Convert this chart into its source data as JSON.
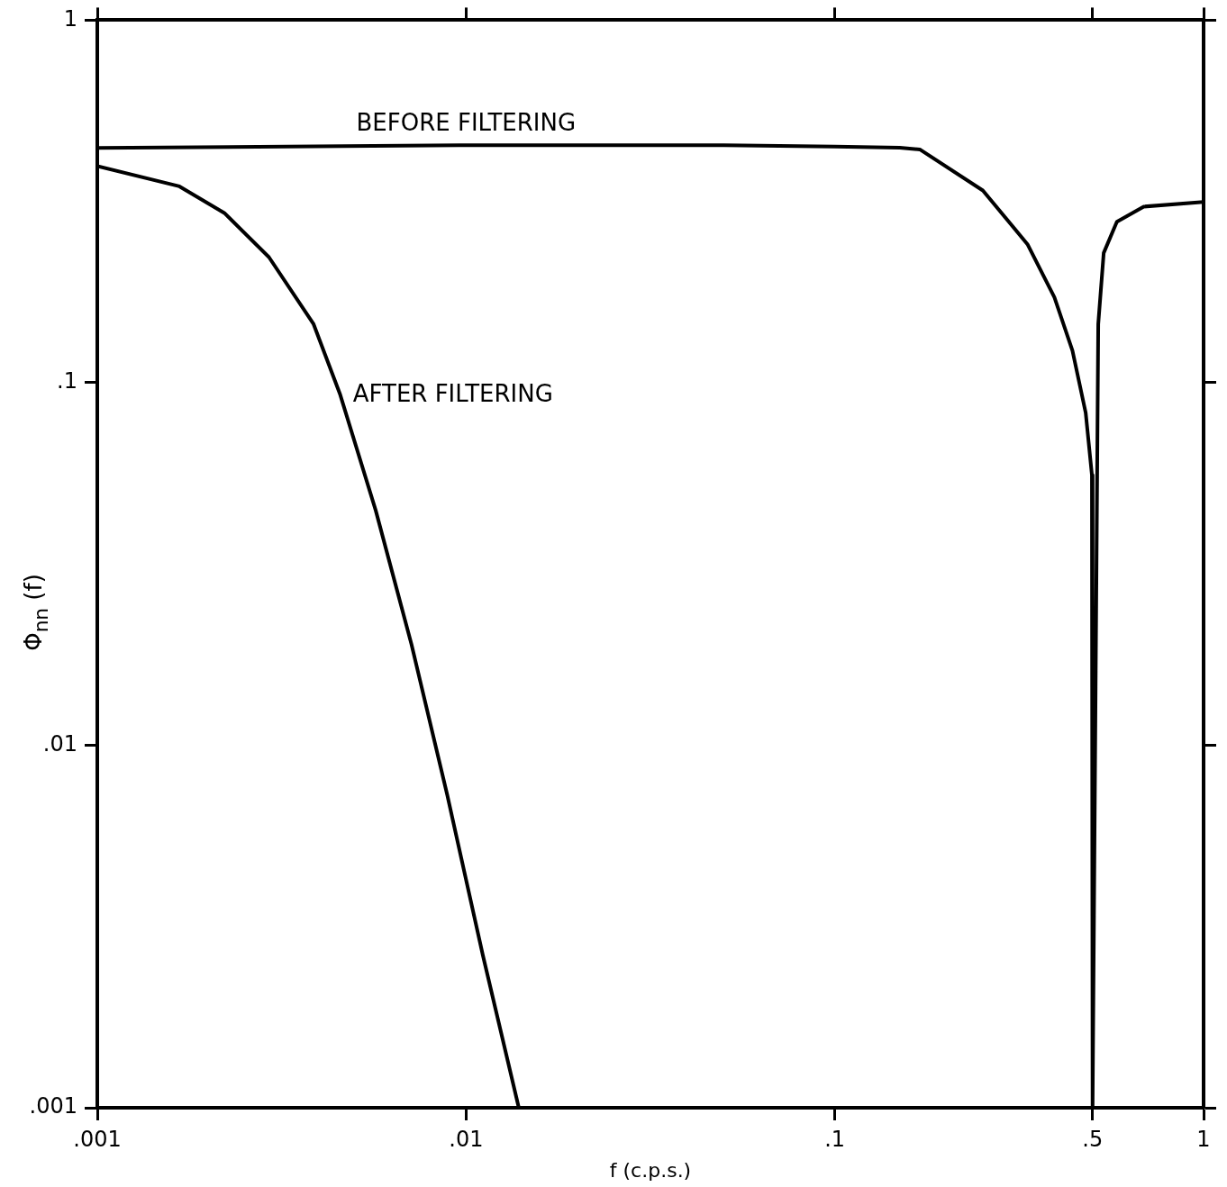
{
  "chart_data": {
    "type": "line",
    "xlabel": "f (c.p.s.)",
    "ylabel": "Φ$_{nn}$ (f)",
    "log": "xy",
    "grid": false,
    "legend": false,
    "marker": "none",
    "line_style": "solid",
    "xlim": [
      0.001,
      1
    ],
    "ylim": [
      0.001,
      1
    ],
    "xticks": [
      {
        "value": 0.001,
        "label": ".001"
      },
      {
        "value": 0.01,
        "label": ".01"
      },
      {
        "value": 0.1,
        "label": ".1"
      },
      {
        "value": 0.5,
        "label": ".5"
      },
      1
    ],
    "yticks": [
      {
        "value": 0.001,
        "label": ".001"
      },
      {
        "value": 0.01,
        "label": ".01"
      },
      {
        "value": 0.1,
        "label": ".1"
      },
      1
    ],
    "series": [
      {
        "name": "BEFORE FILTERING",
        "color": "#000000",
        "x": [
          0.001,
          0.01,
          0.05,
          0.1,
          0.15,
          0.17,
          0.252,
          0.333,
          0.394,
          0.441,
          0.479,
          0.498,
          0.5,
          0.5,
          0.518,
          0.536,
          0.582,
          0.688,
          1
        ],
        "values": [
          0.444,
          0.452,
          0.452,
          0.448,
          0.445,
          0.44,
          0.339,
          0.241,
          0.172,
          0.1225,
          0.0826,
          0.0556,
          0.001,
          0.001,
          0.145,
          0.228,
          0.278,
          0.306,
          0.315
        ]
      },
      {
        "name": "AFTER FILTERING",
        "color": "#000000",
        "x": [
          0.001,
          0.00167,
          0.00221,
          0.00292,
          0.00386,
          0.00456,
          0.00569,
          0.00711,
          0.00889,
          0.0111,
          0.0139
        ],
        "values": [
          0.396,
          0.348,
          0.294,
          0.222,
          0.145,
          0.0925,
          0.0444,
          0.019,
          0.0073,
          0.00264,
          0.001
        ]
      }
    ]
  }
}
